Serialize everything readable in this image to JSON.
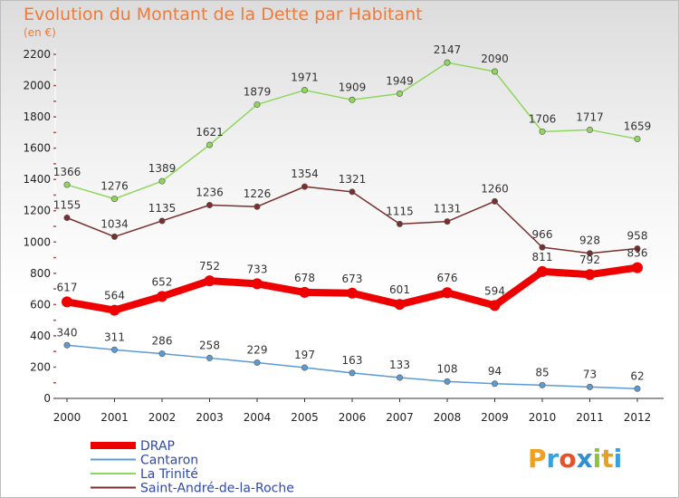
{
  "chart_data": {
    "type": "line",
    "title": "Evolution du Montant de la Dette par Habitant",
    "subtitle": "(en €)",
    "x": [
      "2000",
      "2001",
      "2002",
      "2003",
      "2004",
      "2005",
      "2006",
      "2007",
      "2008",
      "2009",
      "2010",
      "2011",
      "2012"
    ],
    "ylim": [
      0,
      2200
    ],
    "yticks": [
      0,
      200,
      400,
      600,
      800,
      1000,
      1200,
      1400,
      1600,
      1800,
      2000,
      2200
    ],
    "grid": false,
    "legend_position": "bottom-left",
    "series": [
      {
        "name": "DRAP",
        "color": "#ee0000",
        "values": [
          617,
          564,
          652,
          752,
          733,
          678,
          673,
          601,
          676,
          594,
          811,
          792,
          836
        ]
      },
      {
        "name": "Cantaron",
        "color": "#5b9bd5",
        "values": [
          340,
          311,
          286,
          258,
          229,
          197,
          163,
          133,
          108,
          94,
          85,
          73,
          62
        ]
      },
      {
        "name": "La Trinité",
        "color": "#8fd65c",
        "values": [
          1366,
          1276,
          1389,
          1621,
          1879,
          1971,
          1909,
          1949,
          2147,
          2090,
          1706,
          1717,
          1659
        ]
      },
      {
        "name": "Saint-André-de-la-Roche",
        "color": "#7a2f2f",
        "values": [
          1155,
          1034,
          1135,
          1236,
          1226,
          1354,
          1321,
          1115,
          1131,
          1260,
          966,
          928,
          958
        ]
      }
    ]
  },
  "logo": {
    "text": "Proxiti"
  }
}
